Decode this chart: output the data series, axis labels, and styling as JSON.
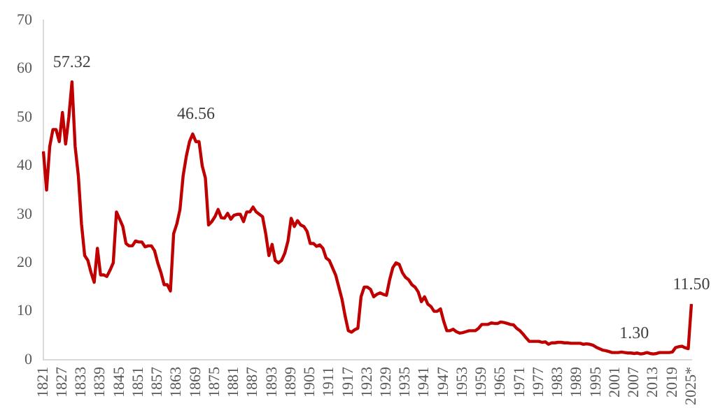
{
  "chart_data": {
    "type": "line",
    "color": "#c00000",
    "categories": [
      "1821",
      null,
      null,
      null,
      null,
      null,
      "1827",
      null,
      null,
      null,
      null,
      null,
      "1833",
      null,
      null,
      null,
      null,
      null,
      "1839",
      null,
      null,
      null,
      null,
      null,
      "1845",
      null,
      null,
      null,
      null,
      null,
      "1851",
      null,
      null,
      null,
      null,
      null,
      "1857",
      null,
      null,
      null,
      null,
      null,
      "1863",
      null,
      null,
      null,
      null,
      null,
      "1869",
      null,
      null,
      null,
      null,
      null,
      "1875",
      null,
      null,
      null,
      null,
      null,
      "1881",
      null,
      null,
      null,
      null,
      null,
      "1887",
      null,
      null,
      null,
      null,
      null,
      "1893",
      null,
      null,
      null,
      null,
      null,
      "1899",
      null,
      null,
      null,
      null,
      null,
      "1905",
      null,
      null,
      null,
      null,
      null,
      "1911",
      null,
      null,
      null,
      null,
      null,
      "1917",
      null,
      null,
      null,
      null,
      null,
      "1923",
      null,
      null,
      null,
      null,
      null,
      "1929",
      null,
      null,
      null,
      null,
      null,
      "1935",
      null,
      null,
      null,
      null,
      null,
      "1941",
      null,
      null,
      null,
      null,
      null,
      "1947",
      null,
      null,
      null,
      null,
      null,
      "1953",
      null,
      null,
      null,
      null,
      null,
      "1959",
      null,
      null,
      null,
      null,
      null,
      "1965",
      null,
      null,
      null,
      null,
      null,
      "1971",
      null,
      null,
      null,
      null,
      null,
      "1977",
      null,
      null,
      null,
      null,
      null,
      "1983",
      null,
      null,
      null,
      null,
      null,
      "1989",
      null,
      null,
      null,
      null,
      null,
      "1995",
      null,
      null,
      null,
      null,
      null,
      "2001",
      null,
      null,
      null,
      null,
      null,
      "2007",
      null,
      null,
      null,
      null,
      null,
      "2013",
      null,
      null,
      null,
      null,
      null,
      "2019",
      null,
      null,
      null,
      null,
      null,
      "2025*"
    ],
    "values": [
      43,
      35,
      44,
      47.5,
      47.5,
      45,
      51,
      44.5,
      50,
      57.32,
      44,
      38,
      28,
      21.5,
      20.5,
      18,
      16,
      23,
      17.5,
      17.5,
      17.2,
      18.5,
      20,
      30.5,
      29,
      27.5,
      24,
      23.5,
      23.5,
      24.5,
      24.3,
      24.3,
      23.3,
      23.5,
      23.5,
      22.5,
      20,
      18,
      15.5,
      15.5,
      14.2,
      26,
      28,
      31,
      38,
      42,
      45,
      46.56,
      45,
      45,
      40,
      37.5,
      27.8,
      28.5,
      29.5,
      31,
      29.3,
      29.2,
      30.2,
      29,
      29.8,
      30,
      30,
      28.5,
      30.5,
      30.5,
      31.5,
      30.5,
      30,
      29.5,
      26,
      21.5,
      23.8,
      20.5,
      20,
      20.5,
      22,
      24.5,
      29.2,
      27.5,
      28.7,
      27.8,
      27.5,
      26.5,
      24,
      24,
      23.4,
      23.7,
      23,
      21,
      20.5,
      19,
      17.5,
      15,
      12.5,
      9,
      6,
      5.7,
      6.2,
      6.5,
      13,
      15,
      15,
      14.5,
      13,
      13.5,
      13.8,
      13.5,
      13.3,
      16.5,
      19,
      20,
      19.7,
      18,
      17,
      16.5,
      15.5,
      15,
      14,
      12,
      13,
      11.5,
      11,
      10,
      10,
      10.5,
      8,
      6,
      6,
      6.3,
      5.8,
      5.5,
      5.6,
      5.8,
      6,
      6,
      6,
      6.5,
      7.3,
      7.3,
      7.3,
      7.6,
      7.5,
      7.5,
      7.8,
      7.7,
      7.5,
      7.3,
      7.2,
      6.5,
      6,
      5.3,
      4.5,
      3.8,
      3.8,
      3.8,
      3.8,
      3.6,
      3.7,
      3.2,
      3.5,
      3.5,
      3.6,
      3.6,
      3.5,
      3.5,
      3.4,
      3.4,
      3.4,
      3.4,
      3.2,
      3.3,
      3.2,
      3,
      2.6,
      2.3,
      2,
      1.9,
      1.7,
      1.5,
      1.5,
      1.5,
      1.6,
      1.5,
      1.4,
      1.4,
      1.3,
      1.4,
      1.2,
      1.3,
      1.5,
      1.3,
      1.2,
      1.3,
      1.5,
      1.5,
      1.5,
      1.5,
      1.6,
      2.5,
      2.7,
      2.8,
      2.5,
      2.3,
      11.5
    ],
    "ylim": [
      0,
      70
    ],
    "yticks": [
      0,
      10,
      20,
      30,
      40,
      50,
      60,
      70
    ],
    "grid": false,
    "legend": false,
    "marker": "none",
    "line_style": "solid",
    "annotations": [
      {
        "text": "57.32",
        "y": 57.32
      },
      {
        "text": "46.56",
        "x": "1869",
        "y": 46.56
      },
      {
        "text": "1.30",
        "x": "2007",
        "y": 1.3
      },
      {
        "text": "11.50",
        "x": "2025*",
        "y": 11.5
      }
    ]
  }
}
